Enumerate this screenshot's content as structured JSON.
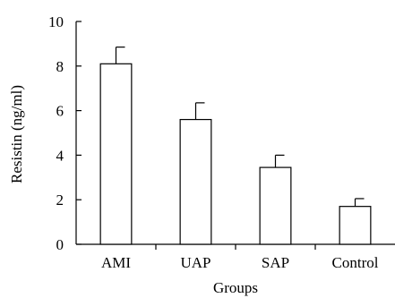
{
  "chart_data": {
    "type": "bar",
    "title": "",
    "xlabel": "Groups",
    "ylabel": "Resistin (ng/ml)",
    "categories": [
      "AMI",
      "UAP",
      "SAP",
      "Control"
    ],
    "values": [
      8.1,
      5.6,
      3.45,
      1.7
    ],
    "errors": [
      0.75,
      0.75,
      0.55,
      0.35
    ],
    "ylim": [
      0,
      10
    ],
    "yticks": [
      "0",
      "2",
      "4",
      "6",
      "8",
      "10"
    ],
    "grid": false,
    "legend": "none",
    "bar_fill": "#ffffff",
    "bar_stroke": "#000000"
  }
}
